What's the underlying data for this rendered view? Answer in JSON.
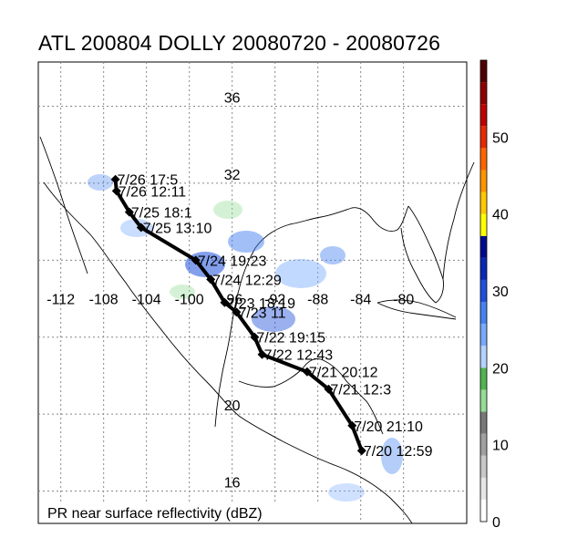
{
  "title": "ATL 200804 DOLLY 20080720 - 20080726",
  "footer_label": "PR near surface reflectivity (dBZ)",
  "lon_labels": [
    "-112",
    "-108",
    "-104",
    "-100",
    "-96",
    "-92",
    "-88",
    "-84",
    "-80"
  ],
  "lat_labels": [
    "36",
    "32",
    "20",
    "16"
  ],
  "colorbar": {
    "ticks": [
      "50",
      "40",
      "30",
      "20",
      "10",
      "0"
    ],
    "colors": [
      "#ffffff",
      "#e6e6e6",
      "#c8c8c8",
      "#a0a0a0",
      "#787878",
      "#96dc96",
      "#50b450",
      "#b4d2ff",
      "#78aaff",
      "#4682f0",
      "#1e50dc",
      "#0a28b4",
      "#000a8c",
      "#ffff00",
      "#ffc800",
      "#ff9600",
      "#ff6400",
      "#e62800",
      "#be0000",
      "#8c0000",
      "#500000"
    ]
  },
  "track": {
    "color": "#000000",
    "points": [
      {
        "label": "7/20 12:59",
        "lon": -83.9,
        "lat": 18.1
      },
      {
        "label": "7/20 21:10",
        "lon": -84.8,
        "lat": 19.4
      },
      {
        "label": "7/21 12:3",
        "lon": -87.0,
        "lat": 21.3
      },
      {
        "label": "7/21 20:12",
        "lon": -89.0,
        "lat": 22.2
      },
      {
        "label": "7/22 12:43",
        "lon": -93.2,
        "lat": 23.1
      },
      {
        "label": "7/22 19:15",
        "lon": -93.9,
        "lat": 24.0
      },
      {
        "label": "7/23 11",
        "lon": -95.6,
        "lat": 25.3
      },
      {
        "label": "7/23 18:19",
        "lon": -96.7,
        "lat": 25.8
      },
      {
        "label": "7/24 12:29",
        "lon": -98.0,
        "lat": 27.0
      },
      {
        "label": "7/24 19:23",
        "lon": -99.4,
        "lat": 28.0
      },
      {
        "label": "7/25 13:10",
        "lon": -104.5,
        "lat": 29.7
      },
      {
        "label": "7/25 18:1",
        "lon": -105.6,
        "lat": 30.5
      },
      {
        "label": "7/26 12:11",
        "lon": -106.8,
        "lat": 31.6
      },
      {
        "label": "7/26 17:5",
        "lon": -106.9,
        "lat": 32.2
      }
    ]
  }
}
